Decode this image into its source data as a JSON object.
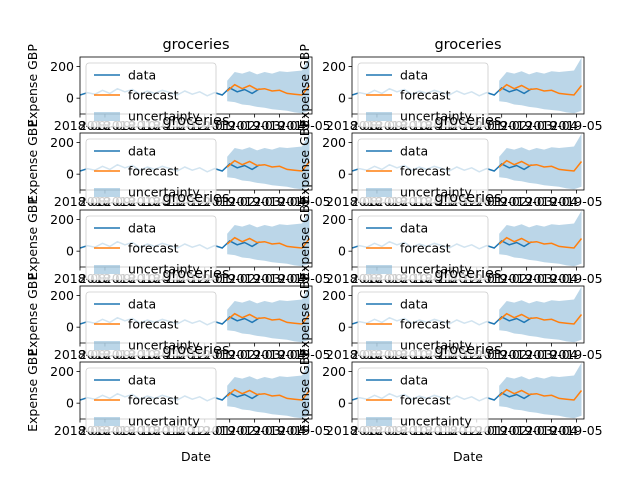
{
  "figure": {
    "rows": 5,
    "cols": 2,
    "colors": {
      "data": "#1f77b4",
      "forecast": "#ff7f0e",
      "uncertainty": "#1f77b4"
    }
  },
  "chart_data": {
    "type": "line",
    "panel_count": 10,
    "title": "groceries",
    "xlabel": "Date",
    "ylabel": "Expense GBP",
    "x_ticklabels": [
      "2018-08",
      "2018-09",
      "2018-10",
      "2018-11",
      "2018-12",
      "2019-01",
      "2019-02",
      "2019-03",
      "2019-04",
      "2019-05"
    ],
    "y_ticks": [
      0,
      200
    ],
    "ylim": [
      -100,
      260
    ],
    "legend": {
      "position": "upper-left",
      "entries": [
        "data",
        "forecast",
        "uncertainty"
      ]
    },
    "x_range_months": [
      0,
      9.3
    ],
    "data_series": {
      "name": "data",
      "x_months": [
        0.0,
        0.3,
        0.6,
        0.9,
        1.2,
        1.5,
        1.8,
        2.1,
        2.4,
        2.7,
        3.0,
        3.3,
        3.6,
        3.9,
        4.2,
        4.5,
        4.8,
        5.1,
        5.4,
        5.7,
        6.0,
        6.3,
        6.6,
        6.9,
        7.2
      ],
      "values": [
        20,
        35,
        25,
        50,
        30,
        60,
        40,
        55,
        25,
        45,
        30,
        50,
        35,
        20,
        45,
        25,
        40,
        15,
        35,
        20,
        65,
        40,
        55,
        30,
        60
      ]
    },
    "forecast_series": {
      "name": "forecast",
      "x_months": [
        5.9,
        6.2,
        6.5,
        6.8,
        7.1,
        7.4,
        7.7,
        8.0,
        8.3,
        8.6,
        8.9,
        9.2
      ],
      "values": [
        45,
        85,
        60,
        80,
        55,
        60,
        45,
        50,
        30,
        25,
        20,
        80
      ]
    },
    "uncertainty_band": {
      "name": "uncertainty",
      "x_months": [
        5.9,
        6.2,
        6.5,
        6.8,
        7.1,
        7.4,
        7.7,
        8.0,
        8.3,
        8.6,
        8.9,
        9.2
      ],
      "upper": [
        110,
        165,
        155,
        170,
        150,
        165,
        155,
        170,
        165,
        170,
        175,
        255
      ],
      "lower": [
        -20,
        -25,
        -40,
        -45,
        -55,
        -60,
        -70,
        -75,
        -80,
        -90,
        -95,
        -80
      ]
    }
  }
}
